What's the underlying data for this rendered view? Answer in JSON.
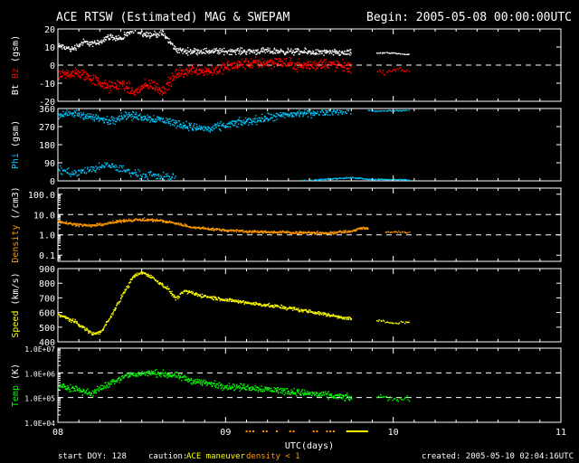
{
  "header": {
    "title": "ACE RTSW (Estimated) MAG & SWEPAM",
    "begin": "Begin: 2005-05-08 00:00:00UTC"
  },
  "footer": {
    "start_doy": "start DOY: 128",
    "caution_label": "caution:",
    "maneuver_label": "ACE maneuver",
    "density_label": "density < 1",
    "created": "created: 2005-05-10 02:04:16UTC"
  },
  "colors": {
    "white": "#ffffff",
    "red": "#ff0000",
    "cyan": "#00c8ff",
    "orange": "#ff9900",
    "yellow": "#ffff00",
    "green": "#00ff00",
    "maneuver": "#ffff00",
    "density_flag": "#ff9900"
  },
  "chart_data": {
    "type": "scatter",
    "x_axis": {
      "label": "UTC(days)",
      "ticks": [
        "08",
        "09",
        "10",
        "11"
      ],
      "range": [
        8,
        11
      ]
    },
    "panels": [
      {
        "id": "mag",
        "ylabel_parts": [
          {
            "text": "Bt",
            "color": "#ffffff"
          },
          {
            "text": "Bz",
            "color": "#ff0000"
          },
          {
            "text": "(gsm)",
            "color": "#ffffff"
          }
        ],
        "scale": "linear",
        "ylim": [
          -20,
          20
        ],
        "ticks": [
          -20,
          -10,
          0,
          10,
          20
        ],
        "tick_labels": [
          "-20",
          "-10",
          "0",
          "10",
          "20"
        ],
        "dashed": [
          0
        ],
        "series": [
          {
            "name": "Bt",
            "color": "#ffffff",
            "points": [
              [
                8.0,
                11
              ],
              [
                8.08,
                9
              ],
              [
                8.15,
                13
              ],
              [
                8.22,
                12
              ],
              [
                8.3,
                16
              ],
              [
                8.38,
                15
              ],
              [
                8.45,
                20
              ],
              [
                8.5,
                18
              ],
              [
                8.55,
                17
              ],
              [
                8.62,
                18
              ],
              [
                8.7,
                9
              ],
              [
                8.75,
                8
              ],
              [
                8.9,
                8
              ],
              [
                9.1,
                8
              ],
              [
                9.3,
                8
              ],
              [
                9.5,
                7.5
              ],
              [
                9.72,
                7
              ],
              [
                9.75,
                7
              ]
            ],
            "spread": 2.5,
            "density": 8
          },
          {
            "name": "Bt_late",
            "color": "#ffffff",
            "points": [
              [
                9.9,
                7
              ],
              [
                9.95,
                7
              ],
              [
                10.0,
                7
              ],
              [
                10.1,
                6
              ]
            ],
            "spread": 0.6,
            "density": 3
          },
          {
            "name": "Bz",
            "color": "#ff0000",
            "points": [
              [
                8.0,
                -6
              ],
              [
                8.08,
                -4
              ],
              [
                8.15,
                -5
              ],
              [
                8.22,
                -8
              ],
              [
                8.3,
                -12
              ],
              [
                8.38,
                -10
              ],
              [
                8.45,
                -15
              ],
              [
                8.5,
                -12
              ],
              [
                8.55,
                -10
              ],
              [
                8.62,
                -14
              ],
              [
                8.7,
                -5
              ],
              [
                8.8,
                -2
              ],
              [
                8.9,
                -3
              ],
              [
                9.1,
                1
              ],
              [
                9.3,
                2
              ],
              [
                9.45,
                0
              ],
              [
                9.6,
                1
              ],
              [
                9.75,
                -1
              ]
            ],
            "spread": 4.5,
            "density": 10
          },
          {
            "name": "Bz_late",
            "color": "#ff0000",
            "points": [
              [
                9.9,
                -3
              ],
              [
                9.95,
                -4
              ],
              [
                10.0,
                -2
              ],
              [
                10.1,
                -3
              ]
            ],
            "spread": 1.5,
            "density": 3
          }
        ]
      },
      {
        "id": "phi",
        "ylabel_parts": [
          {
            "text": "Phi",
            "color": "#00c8ff"
          },
          {
            "text": "(gsm)",
            "color": "#ffffff"
          }
        ],
        "scale": "linear",
        "ylim": [
          0,
          360
        ],
        "ticks": [
          0,
          90,
          180,
          270,
          360
        ],
        "tick_labels": [
          "0",
          "90",
          "180",
          "270",
          "360"
        ],
        "dashed": [],
        "series": [
          {
            "name": "Phi",
            "color": "#00c8ff",
            "points": [
              [
                8.0,
                330
              ],
              [
                8.1,
                340
              ],
              [
                8.2,
                320
              ],
              [
                8.3,
                300
              ],
              [
                8.4,
                330
              ],
              [
                8.5,
                320
              ],
              [
                8.6,
                310
              ],
              [
                8.7,
                290
              ],
              [
                8.8,
                270
              ],
              [
                8.9,
                260
              ],
              [
                9.0,
                280
              ],
              [
                9.2,
                310
              ],
              [
                9.4,
                335
              ],
              [
                9.6,
                350
              ],
              [
                9.75,
                355
              ]
            ],
            "spread": 30,
            "density": 8
          },
          {
            "name": "Phi_low",
            "color": "#00c8ff",
            "points": [
              [
                8.0,
                60
              ],
              [
                8.1,
                40
              ],
              [
                8.3,
                80
              ],
              [
                8.5,
                30
              ],
              [
                8.7,
                20
              ]
            ],
            "spread": 30,
            "density": 6
          },
          {
            "name": "Phi_wrap",
            "color": "#00c8ff",
            "points": [
              [
                9.45,
                3
              ],
              [
                9.55,
                8
              ],
              [
                9.65,
                14
              ],
              [
                9.75,
                20
              ],
              [
                9.85,
                10
              ],
              [
                10.05,
                8
              ],
              [
                10.1,
                5
              ]
            ],
            "spread": 5,
            "density": 4
          },
          {
            "name": "Phi_late",
            "color": "#00c8ff",
            "points": [
              [
                9.85,
                355
              ],
              [
                9.9,
                350
              ],
              [
                10.1,
                355
              ]
            ],
            "spread": 5,
            "density": 3
          }
        ]
      },
      {
        "id": "density",
        "ylabel_parts": [
          {
            "text": "Density",
            "color": "#ff9900"
          },
          {
            "text": "(/cm3)",
            "color": "#ffffff"
          }
        ],
        "scale": "log",
        "ylim": [
          0.05,
          200
        ],
        "ticks": [
          0.1,
          1.0,
          10.0,
          100.0
        ],
        "tick_labels": [
          "0.1",
          "1.0",
          "10.0",
          "100.0"
        ],
        "dashed": [
          1.0,
          10.0
        ],
        "series": [
          {
            "name": "Density",
            "color": "#ff9900",
            "points": [
              [
                8.0,
                5
              ],
              [
                8.1,
                3.5
              ],
              [
                8.2,
                3
              ],
              [
                8.3,
                4
              ],
              [
                8.4,
                5.5
              ],
              [
                8.5,
                6
              ],
              [
                8.6,
                5.5
              ],
              [
                8.7,
                4
              ],
              [
                8.8,
                2.5
              ],
              [
                9.0,
                1.8
              ],
              [
                9.2,
                1.5
              ],
              [
                9.4,
                1.4
              ],
              [
                9.6,
                1.3
              ],
              [
                9.75,
                1.6
              ],
              [
                9.8,
                2.3
              ],
              [
                9.85,
                2.1
              ]
            ],
            "spread_factor": 1.25,
            "density": 8
          },
          {
            "name": "Density_late",
            "color": "#ff9900",
            "points": [
              [
                9.95,
                1.4
              ],
              [
                10.0,
                1.5
              ],
              [
                10.1,
                1.4
              ]
            ],
            "spread_factor": 1.15,
            "density": 3
          }
        ]
      },
      {
        "id": "speed",
        "ylabel_parts": [
          {
            "text": "Speed",
            "color": "#ffff00"
          },
          {
            "text": "(km/s)",
            "color": "#ffffff"
          }
        ],
        "scale": "linear",
        "ylim": [
          400,
          900
        ],
        "ticks": [
          400,
          500,
          600,
          700,
          800,
          900
        ],
        "tick_labels": [
          "400",
          "500",
          "600",
          "700",
          "800",
          "900"
        ],
        "dashed": [],
        "series": [
          {
            "name": "Speed",
            "color": "#ffff00",
            "points": [
              [
                8.0,
                590
              ],
              [
                8.1,
                540
              ],
              [
                8.2,
                460
              ],
              [
                8.25,
                470
              ],
              [
                8.3,
                550
              ],
              [
                8.4,
                760
              ],
              [
                8.45,
                850
              ],
              [
                8.5,
                880
              ],
              [
                8.55,
                850
              ],
              [
                8.65,
                770
              ],
              [
                8.7,
                700
              ],
              [
                8.75,
                750
              ],
              [
                8.85,
                720
              ],
              [
                9.0,
                690
              ],
              [
                9.2,
                660
              ],
              [
                9.4,
                630
              ],
              [
                9.6,
                590
              ],
              [
                9.75,
                560
              ]
            ],
            "spread": 18,
            "density": 8
          },
          {
            "name": "Speed_late",
            "color": "#ffff00",
            "points": [
              [
                9.9,
                550
              ],
              [
                10.0,
                530
              ],
              [
                10.1,
                540
              ]
            ],
            "spread": 12,
            "density": 3
          }
        ]
      },
      {
        "id": "temp",
        "ylabel_parts": [
          {
            "text": "Temp",
            "color": "#00ff00"
          },
          {
            "text": "(K)",
            "color": "#ffffff"
          }
        ],
        "scale": "log",
        "ylim": [
          10000,
          10000000
        ],
        "ticks": [
          10000,
          100000,
          1000000,
          10000000
        ],
        "tick_labels": [
          "1.0E+04",
          "1.0E+05",
          "1.0E+06",
          "1.0E+07"
        ],
        "dashed": [
          100000,
          1000000
        ],
        "series": [
          {
            "name": "Temp",
            "color": "#00ff00",
            "points": [
              [
                8.0,
                300000
              ],
              [
                8.1,
                250000
              ],
              [
                8.2,
                150000
              ],
              [
                8.3,
                400000
              ],
              [
                8.4,
                800000
              ],
              [
                8.5,
                1000000
              ],
              [
                8.6,
                1000000
              ],
              [
                8.7,
                800000
              ],
              [
                8.8,
                500000
              ],
              [
                9.0,
                300000
              ],
              [
                9.2,
                250000
              ],
              [
                9.4,
                180000
              ],
              [
                9.6,
                130000
              ],
              [
                9.75,
                100000
              ]
            ],
            "spread_factor": 1.6,
            "density": 8
          },
          {
            "name": "Temp_late",
            "color": "#00ff00",
            "points": [
              [
                9.9,
                120000
              ],
              [
                10.0,
                90000
              ],
              [
                10.1,
                100000
              ]
            ],
            "spread_factor": 1.4,
            "density": 3
          }
        ]
      }
    ],
    "flags": {
      "density_flag_ranges": [
        [
          9.1,
          9.75
        ]
      ],
      "maneuver_ranges": [
        [
          9.72,
          9.85
        ]
      ]
    }
  }
}
